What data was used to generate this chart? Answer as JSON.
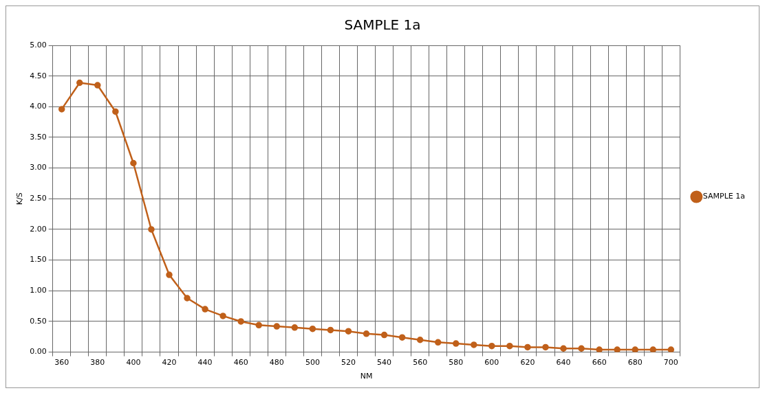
{
  "chart_data": {
    "type": "line",
    "title": "SAMPLE 1a",
    "xlabel": "NM",
    "ylabel": "K/S",
    "categories": [
      "360",
      null,
      "380",
      null,
      "400",
      null,
      "420",
      null,
      "440",
      null,
      "460",
      null,
      "480",
      null,
      "500",
      null,
      "520",
      null,
      "540",
      null,
      "560",
      null,
      "580",
      null,
      "600",
      null,
      "620",
      null,
      "640",
      null,
      "660",
      null,
      "680",
      null,
      "700"
    ],
    "series": [
      {
        "name": "SAMPLE 1a",
        "color": "#c0601a",
        "values": [
          3.96,
          4.39,
          4.35,
          3.92,
          3.08,
          2.0,
          1.26,
          0.88,
          0.7,
          0.59,
          0.5,
          0.44,
          0.42,
          0.4,
          0.38,
          0.36,
          0.34,
          0.3,
          0.28,
          0.24,
          0.2,
          0.16,
          0.14,
          0.12,
          0.1,
          0.1,
          0.08,
          0.08,
          0.06,
          0.06,
          0.04,
          0.04,
          0.04,
          0.04,
          0.04
        ]
      }
    ],
    "ylim": [
      0,
      5
    ],
    "yticks": [
      {
        "value": 0,
        "label": "0.00"
      },
      {
        "value": 0.5,
        "label": "0.50"
      },
      {
        "value": 1,
        "label": "1.00"
      },
      {
        "value": 1.5,
        "label": "1.50"
      },
      {
        "value": 2,
        "label": "2.00"
      },
      {
        "value": 2.5,
        "label": "2.50"
      },
      {
        "value": 3,
        "label": "3.00"
      },
      {
        "value": 3.5,
        "label": "3.50"
      },
      {
        "value": 4,
        "label": "4.00"
      },
      {
        "value": 4.5,
        "label": "4.50"
      },
      {
        "value": 5,
        "label": "5.00"
      }
    ],
    "grid": true,
    "legend": "right",
    "marker": "circle",
    "line_style": "solid"
  }
}
